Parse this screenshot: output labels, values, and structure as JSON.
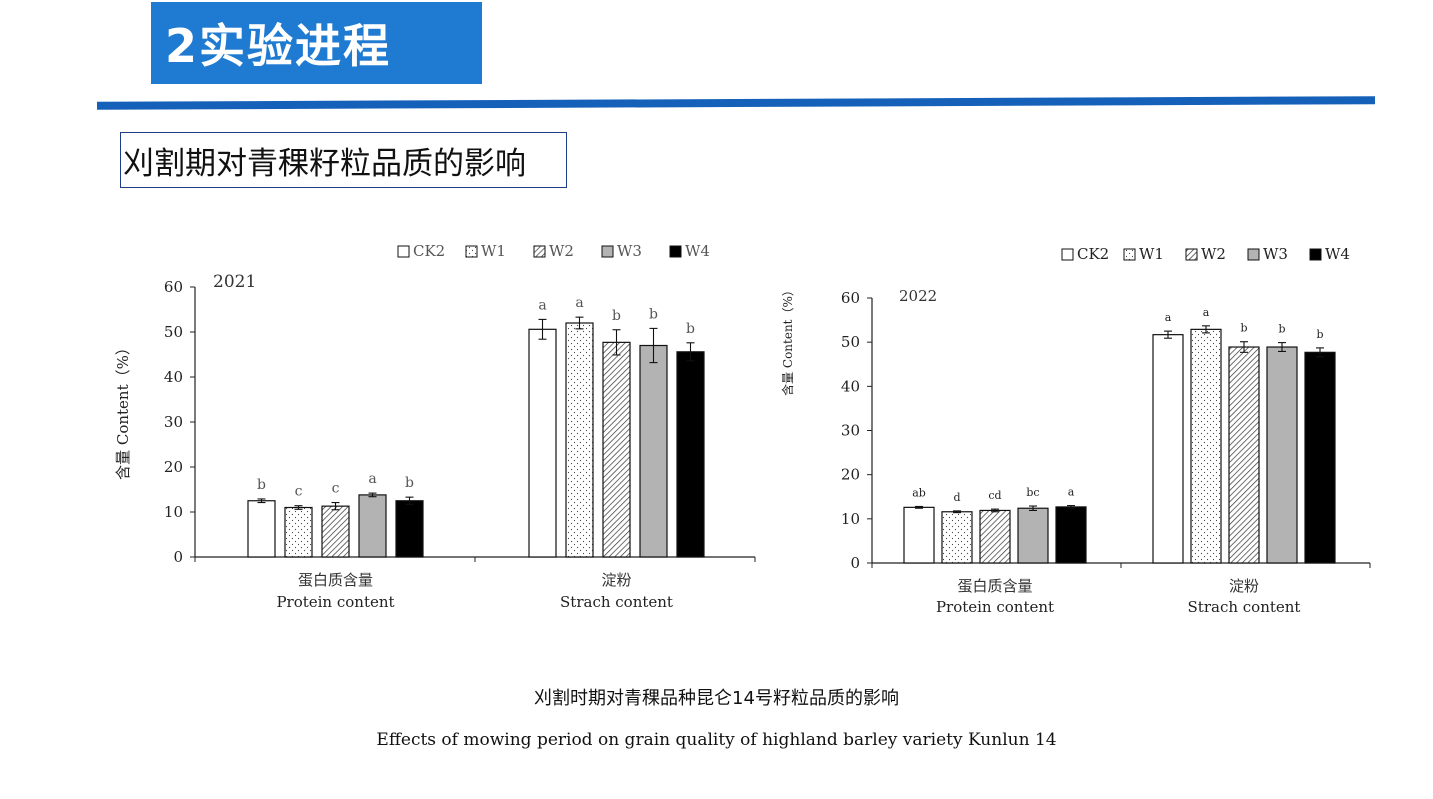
{
  "header": {
    "title": "2实验进程",
    "subtitle": "刈割期对青稞籽粒品质的影响"
  },
  "caption": {
    "zh": "刈割时期对青稞品种昆仑14号籽粒品质的影响",
    "en": "Effects of mowing period on grain quality of highland barley variety Kunlun 14"
  },
  "legend_names": [
    "CK2",
    "W1",
    "W2",
    "W3",
    "W4"
  ],
  "chart_data": [
    {
      "type": "bar",
      "year_label": "2021",
      "ylabel": "含量 Content（%）",
      "ylim": [
        0,
        60
      ],
      "yticks": [
        0,
        10,
        20,
        30,
        40,
        50,
        60
      ],
      "categories": [
        {
          "zh": "蛋白质含量",
          "en": "Protein content"
        },
        {
          "zh": "淀粉",
          "en": "Strach content"
        }
      ],
      "legend": "top",
      "series": [
        {
          "name": "CK2",
          "values": [
            12.5,
            50.6
          ],
          "errors": [
            0.4,
            2.2
          ],
          "labels": [
            "b",
            "a"
          ]
        },
        {
          "name": "W1",
          "values": [
            11.0,
            52.0
          ],
          "errors": [
            0.4,
            1.3
          ],
          "labels": [
            "c",
            "a"
          ]
        },
        {
          "name": "W2",
          "values": [
            11.3,
            47.7
          ],
          "errors": [
            0.8,
            2.8
          ],
          "labels": [
            "c",
            "b"
          ]
        },
        {
          "name": "W3",
          "values": [
            13.8,
            47.0
          ],
          "errors": [
            0.4,
            3.8
          ],
          "labels": [
            "a",
            "b"
          ]
        },
        {
          "name": "W4",
          "values": [
            12.5,
            45.6
          ],
          "errors": [
            0.8,
            2.0
          ],
          "labels": [
            "b",
            "b"
          ]
        }
      ]
    },
    {
      "type": "bar",
      "year_label": "2022",
      "ylabel": "含量 Content（%）",
      "ylim": [
        0,
        60
      ],
      "yticks": [
        0,
        10,
        20,
        30,
        40,
        50,
        60
      ],
      "categories": [
        {
          "zh": "蛋白质含量",
          "en": "Protein content"
        },
        {
          "zh": "淀粉",
          "en": "Strach content"
        }
      ],
      "legend": "top-right",
      "series": [
        {
          "name": "CK2",
          "values": [
            12.6,
            51.7
          ],
          "errors": [
            0.2,
            0.8
          ],
          "labels": [
            "ab",
            "a"
          ]
        },
        {
          "name": "W1",
          "values": [
            11.6,
            52.9
          ],
          "errors": [
            0.2,
            0.8
          ],
          "labels": [
            "d",
            "a"
          ]
        },
        {
          "name": "W2",
          "values": [
            11.9,
            48.9
          ],
          "errors": [
            0.3,
            1.2
          ],
          "labels": [
            "cd",
            "b"
          ]
        },
        {
          "name": "W3",
          "values": [
            12.4,
            48.9
          ],
          "errors": [
            0.5,
            1.0
          ],
          "labels": [
            "bc",
            "b"
          ]
        },
        {
          "name": "W4",
          "values": [
            12.7,
            47.7
          ],
          "errors": [
            0.3,
            1.0
          ],
          "labels": [
            "a",
            "b"
          ]
        }
      ]
    }
  ]
}
